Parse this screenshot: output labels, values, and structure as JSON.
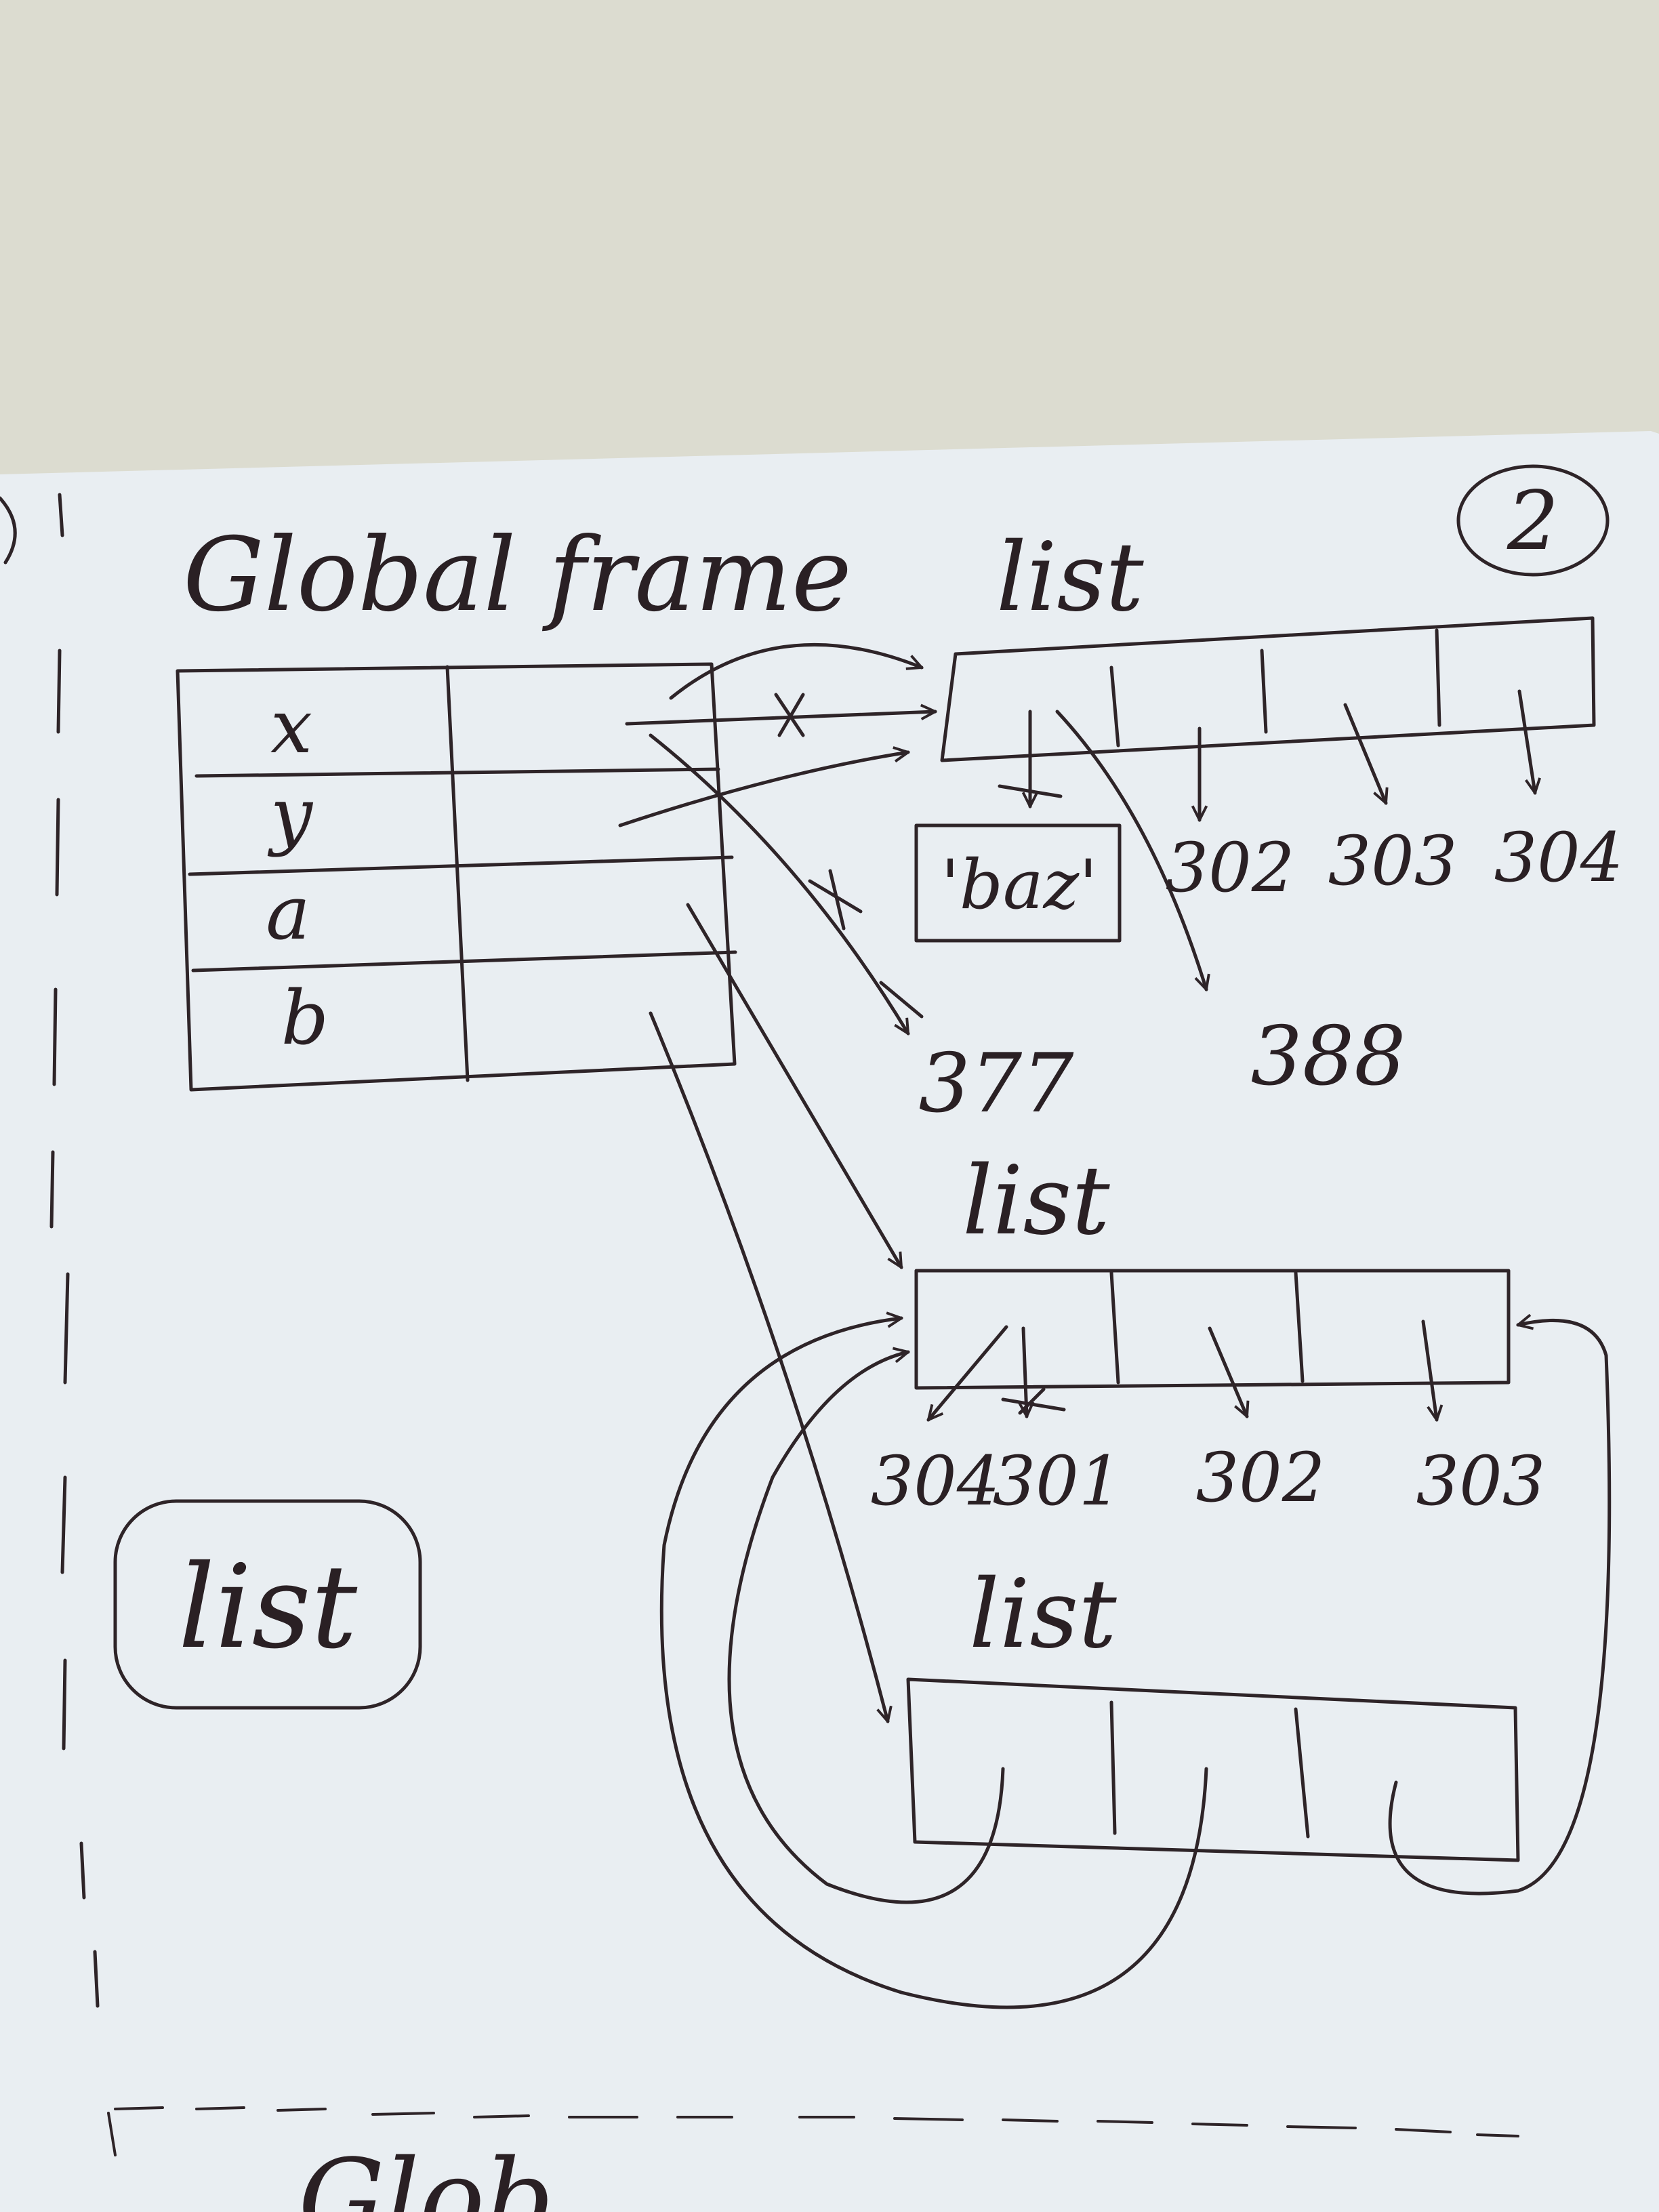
{
  "page": {
    "number": "2",
    "background": "#dcdcd0",
    "paper_color": "#e9eef2",
    "ink_color": "#2e2428"
  },
  "frame": {
    "title": "Global frame",
    "variables": [
      "x",
      "y",
      "a",
      "b"
    ]
  },
  "objects": {
    "list1": {
      "label": "list",
      "elements": [
        "'baz'",
        "302",
        "303",
        "304"
      ],
      "old_targets": [
        "377",
        "388"
      ]
    },
    "list2": {
      "label": "list",
      "elements": [
        "304",
        "301",
        "302",
        "303"
      ]
    },
    "list3": {
      "label": "list"
    }
  },
  "side_note": "list",
  "footer_partial": "Glob"
}
